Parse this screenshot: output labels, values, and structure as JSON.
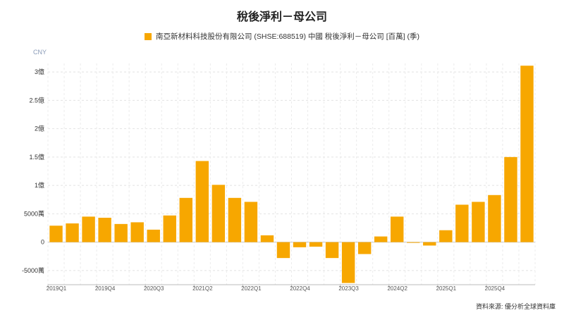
{
  "title": "稅後淨利－母公司",
  "legend": {
    "label": "南亞新材料科技股份有限公司 (SHSE:688519) 中國 稅後淨利－母公司 [百萬] (季)",
    "color": "#f7a700"
  },
  "unit_label": "CNY",
  "footer": "資料來源: 優分析全球資料庫",
  "chart_data": {
    "type": "bar",
    "title": "稅後淨利－母公司",
    "xlabel": "",
    "ylabel": "",
    "ylim": [
      -75000000,
      315000000
    ],
    "grid": true,
    "legend_placement": "top-center",
    "y_ticks": [
      {
        "value": -50000000,
        "label": "-5000萬"
      },
      {
        "value": 0,
        "label": "0"
      },
      {
        "value": 50000000,
        "label": "5000萬"
      },
      {
        "value": 100000000,
        "label": "1億"
      },
      {
        "value": 150000000,
        "label": "1.5億"
      },
      {
        "value": 200000000,
        "label": "2億"
      },
      {
        "value": 250000000,
        "label": "2.5億"
      },
      {
        "value": 300000000,
        "label": "3億"
      }
    ],
    "x_tick_labels": [
      {
        "index": 0,
        "label": "2019Q1"
      },
      {
        "index": 3,
        "label": "2019Q4"
      },
      {
        "index": 6,
        "label": "2020Q3"
      },
      {
        "index": 9,
        "label": "2021Q2"
      },
      {
        "index": 12,
        "label": "2022Q1"
      },
      {
        "index": 15,
        "label": "2022Q4"
      },
      {
        "index": 18,
        "label": "2023Q3"
      },
      {
        "index": 21,
        "label": "2024Q2"
      },
      {
        "index": 24,
        "label": "2025Q1"
      },
      {
        "index": 27,
        "label": "2025Q4"
      }
    ],
    "categories": [
      "2019Q1",
      "2019Q2",
      "2019Q3",
      "2019Q4",
      "2020Q1",
      "2020Q2",
      "2020Q3",
      "2020Q4",
      "2021Q1",
      "2021Q2",
      "2021Q3",
      "2021Q4",
      "2022Q1",
      "2022Q2",
      "2022Q3",
      "2022Q4",
      "2023Q1",
      "2023Q2",
      "2023Q3",
      "2023Q4",
      "2024Q1",
      "2024Q2",
      "2024Q3",
      "2024Q4",
      "2025Q1",
      "2025Q2",
      "2025Q3",
      "2025Q4",
      "2026Q1",
      "2026Q2"
    ],
    "series": [
      {
        "name": "南亞新材料科技股份有限公司 (SHSE:688519) 中國 稅後淨利－母公司 [百萬] (季)",
        "color": "#f7a700",
        "values": [
          29000000,
          33000000,
          45000000,
          43000000,
          32000000,
          35000000,
          22000000,
          47000000,
          78000000,
          143000000,
          101000000,
          78000000,
          71000000,
          12000000,
          -28000000,
          -9000000,
          -8000000,
          -28000000,
          -72000000,
          -21000000,
          10000000,
          45000000,
          -1000000,
          -6000000,
          21000000,
          66000000,
          71000000,
          83000000,
          150000000,
          311000000
        ]
      }
    ]
  }
}
